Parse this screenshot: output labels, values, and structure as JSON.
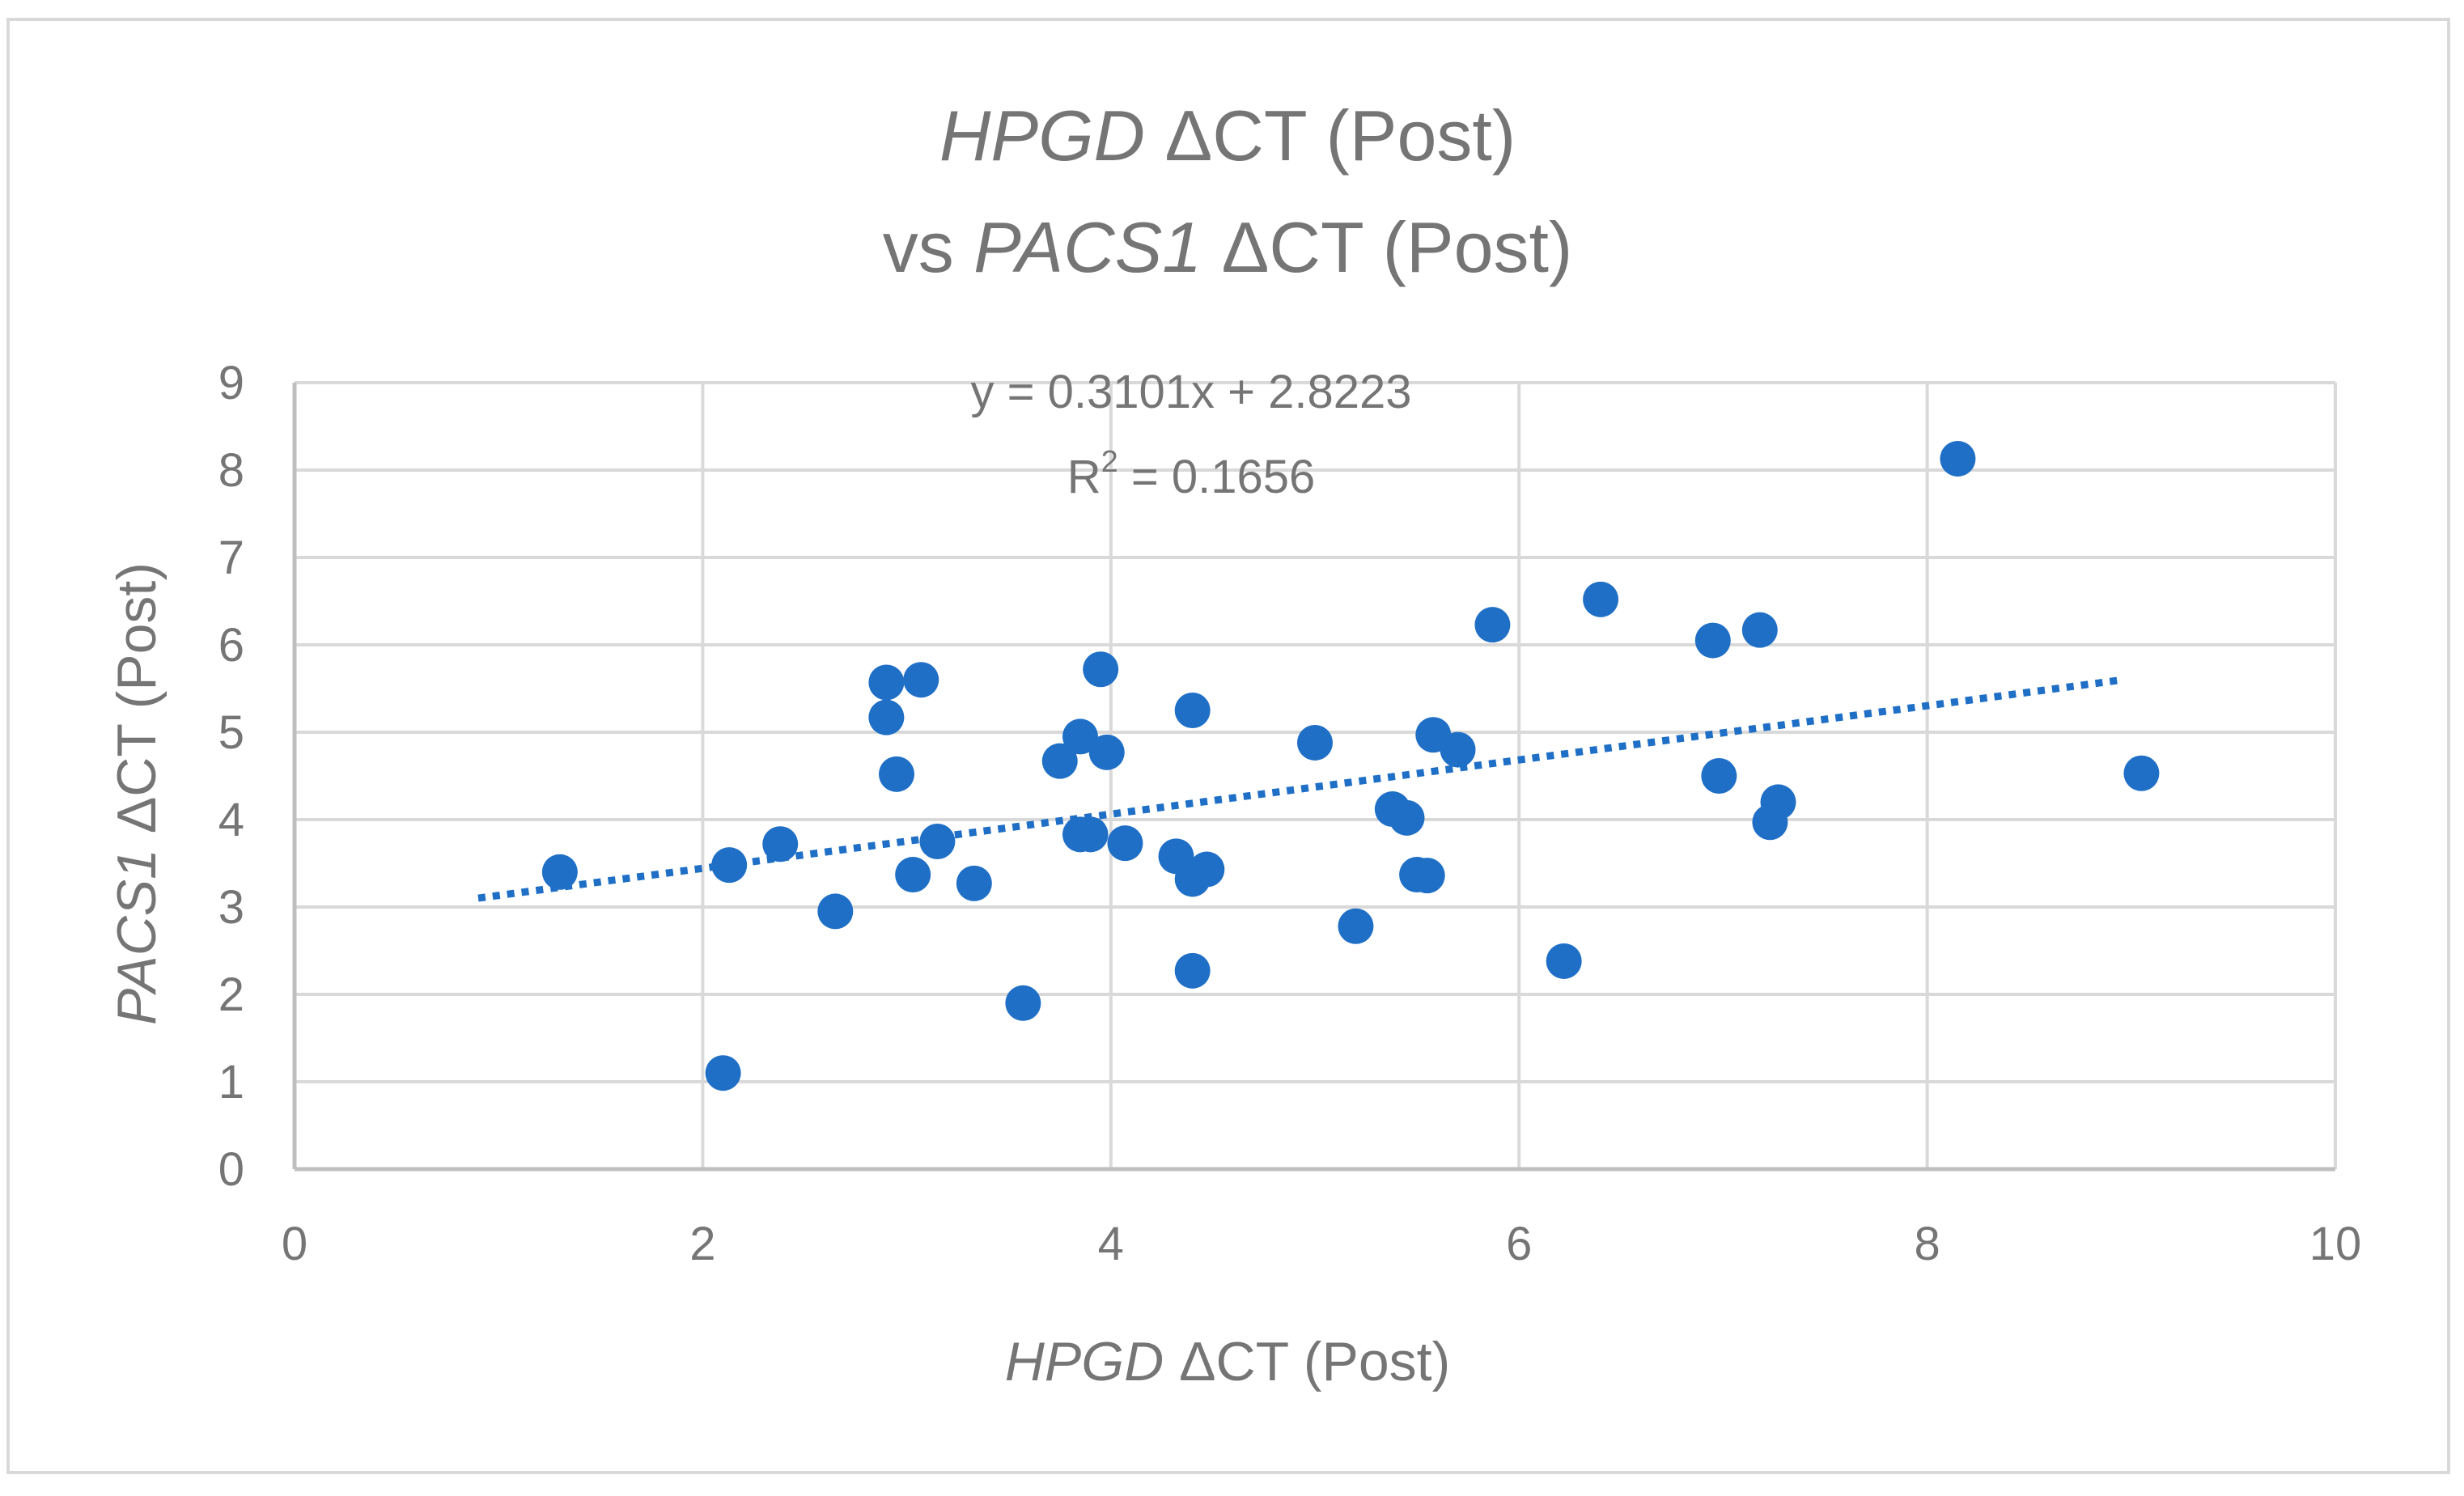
{
  "chart_data": {
    "type": "scatter",
    "title": {
      "line1_gene": "HPGD",
      "line1_rest": " ΔCT (Post)",
      "line2_prefix": "vs ",
      "line2_gene": "PACS1",
      "line2_rest": " ΔCT (Post)"
    },
    "xlabel": {
      "gene": "HPGD",
      "rest": " ΔCT (Post)"
    },
    "ylabel": {
      "gene": "PACS1",
      "rest": " ΔCT (Post)"
    },
    "xlim": [
      0,
      10
    ],
    "ylim": [
      0,
      9
    ],
    "x_ticks": [
      "0",
      "2",
      "4",
      "6",
      "8",
      "10"
    ],
    "y_ticks": [
      "0",
      "1",
      "2",
      "3",
      "4",
      "5",
      "6",
      "7",
      "8",
      "9"
    ],
    "grid": true,
    "legend": "none",
    "series": [
      {
        "name": "PACS1 ΔCT (Post)",
        "color": "#1f6fc6",
        "points": [
          [
            1.3,
            3.4
          ],
          [
            2.1,
            1.1
          ],
          [
            2.13,
            3.48
          ],
          [
            2.38,
            3.72
          ],
          [
            2.65,
            2.95
          ],
          [
            2.9,
            5.57
          ],
          [
            2.9,
            5.17
          ],
          [
            2.95,
            4.52
          ],
          [
            3.03,
            3.37
          ],
          [
            3.07,
            5.6
          ],
          [
            3.15,
            3.75
          ],
          [
            3.33,
            3.27
          ],
          [
            3.57,
            1.9
          ],
          [
            3.75,
            4.67
          ],
          [
            3.85,
            4.95
          ],
          [
            3.85,
            3.83
          ],
          [
            3.9,
            3.83
          ],
          [
            3.95,
            5.72
          ],
          [
            3.98,
            4.77
          ],
          [
            4.07,
            3.73
          ],
          [
            4.32,
            3.58
          ],
          [
            4.4,
            5.25
          ],
          [
            4.4,
            3.32
          ],
          [
            4.4,
            2.27
          ],
          [
            4.47,
            3.43
          ],
          [
            5.0,
            4.88
          ],
          [
            5.2,
            2.78
          ],
          [
            5.38,
            4.12
          ],
          [
            5.45,
            4.02
          ],
          [
            5.5,
            3.37
          ],
          [
            5.55,
            3.36
          ],
          [
            5.58,
            4.97
          ],
          [
            5.7,
            4.8
          ],
          [
            5.87,
            6.23
          ],
          [
            6.22,
            2.38
          ],
          [
            6.4,
            6.52
          ],
          [
            6.95,
            6.05
          ],
          [
            6.98,
            4.5
          ],
          [
            7.18,
            6.17
          ],
          [
            7.23,
            3.97
          ],
          [
            7.27,
            4.2
          ],
          [
            8.15,
            8.13
          ],
          [
            9.05,
            4.53
          ]
        ]
      }
    ],
    "trendline": {
      "type": "linear",
      "style": "dotted",
      "color": "#1f6fc6",
      "slope": 0.3101,
      "intercept": 2.8223,
      "x_start": 0.9,
      "x_end": 8.95,
      "equation_text": "y = 0.3101x + 2.8223",
      "r2_label": "R",
      "r2_sup": "2",
      "r2_value": " = 0.1656"
    },
    "colors": {
      "text": "#757575",
      "grid": "#d9d9d9",
      "axis": "#bfbfbf",
      "marker": "#1f6fc6"
    }
  }
}
